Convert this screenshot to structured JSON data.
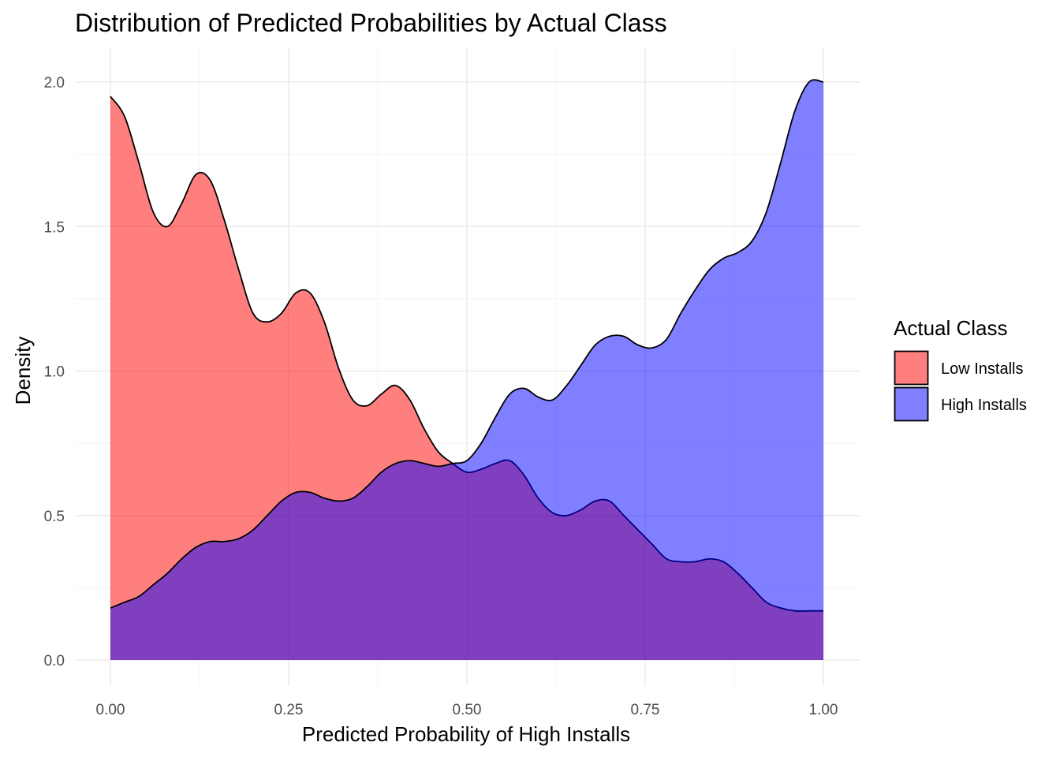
{
  "chart_data": {
    "type": "area",
    "subtype": "density",
    "title": "Distribution of Predicted Probabilities by Actual Class",
    "xlabel": "Predicted Probability of High Installs",
    "ylabel": "Density",
    "xlim": [
      0,
      1
    ],
    "ylim": [
      0,
      2.1
    ],
    "x_ticks": [
      "0.00",
      "0.25",
      "0.50",
      "0.75",
      "1.00"
    ],
    "y_ticks": [
      "0.0",
      "0.5",
      "1.0",
      "1.5",
      "2.0"
    ],
    "grid": true,
    "legend": {
      "title": "Actual Class",
      "position": "right"
    },
    "series": [
      {
        "name": "Low Installs",
        "color": "#ff0000",
        "opacity": 0.5,
        "x": [
          0.0,
          0.02,
          0.04,
          0.06,
          0.08,
          0.1,
          0.12,
          0.14,
          0.16,
          0.18,
          0.2,
          0.22,
          0.24,
          0.26,
          0.28,
          0.3,
          0.32,
          0.34,
          0.36,
          0.38,
          0.4,
          0.42,
          0.44,
          0.46,
          0.48,
          0.5,
          0.52,
          0.54,
          0.56,
          0.58,
          0.6,
          0.62,
          0.64,
          0.66,
          0.68,
          0.7,
          0.72,
          0.74,
          0.76,
          0.78,
          0.8,
          0.82,
          0.84,
          0.86,
          0.88,
          0.9,
          0.92,
          0.94,
          0.96,
          0.98,
          1.0
        ],
        "y": [
          1.95,
          1.88,
          1.72,
          1.55,
          1.5,
          1.58,
          1.68,
          1.66,
          1.52,
          1.35,
          1.2,
          1.17,
          1.2,
          1.27,
          1.27,
          1.17,
          1.01,
          0.9,
          0.88,
          0.92,
          0.95,
          0.9,
          0.8,
          0.72,
          0.68,
          0.65,
          0.66,
          0.68,
          0.69,
          0.64,
          0.56,
          0.51,
          0.5,
          0.52,
          0.55,
          0.55,
          0.5,
          0.45,
          0.4,
          0.35,
          0.34,
          0.34,
          0.35,
          0.34,
          0.3,
          0.25,
          0.2,
          0.18,
          0.17,
          0.17,
          0.17
        ]
      },
      {
        "name": "High Installs",
        "color": "#0000ff",
        "opacity": 0.5,
        "x": [
          0.0,
          0.02,
          0.04,
          0.06,
          0.08,
          0.1,
          0.12,
          0.14,
          0.16,
          0.18,
          0.2,
          0.22,
          0.24,
          0.26,
          0.28,
          0.3,
          0.32,
          0.34,
          0.36,
          0.38,
          0.4,
          0.42,
          0.44,
          0.46,
          0.48,
          0.5,
          0.52,
          0.54,
          0.56,
          0.58,
          0.6,
          0.62,
          0.64,
          0.66,
          0.68,
          0.7,
          0.72,
          0.74,
          0.76,
          0.78,
          0.8,
          0.82,
          0.84,
          0.86,
          0.88,
          0.9,
          0.92,
          0.94,
          0.96,
          0.98,
          1.0
        ],
        "y": [
          0.18,
          0.2,
          0.22,
          0.26,
          0.3,
          0.35,
          0.39,
          0.41,
          0.41,
          0.42,
          0.45,
          0.5,
          0.55,
          0.58,
          0.58,
          0.56,
          0.55,
          0.56,
          0.6,
          0.65,
          0.68,
          0.69,
          0.68,
          0.67,
          0.68,
          0.69,
          0.75,
          0.84,
          0.92,
          0.94,
          0.91,
          0.9,
          0.95,
          1.02,
          1.09,
          1.12,
          1.12,
          1.09,
          1.08,
          1.11,
          1.2,
          1.28,
          1.35,
          1.39,
          1.41,
          1.45,
          1.55,
          1.72,
          1.9,
          2.0,
          2.0
        ]
      }
    ]
  }
}
